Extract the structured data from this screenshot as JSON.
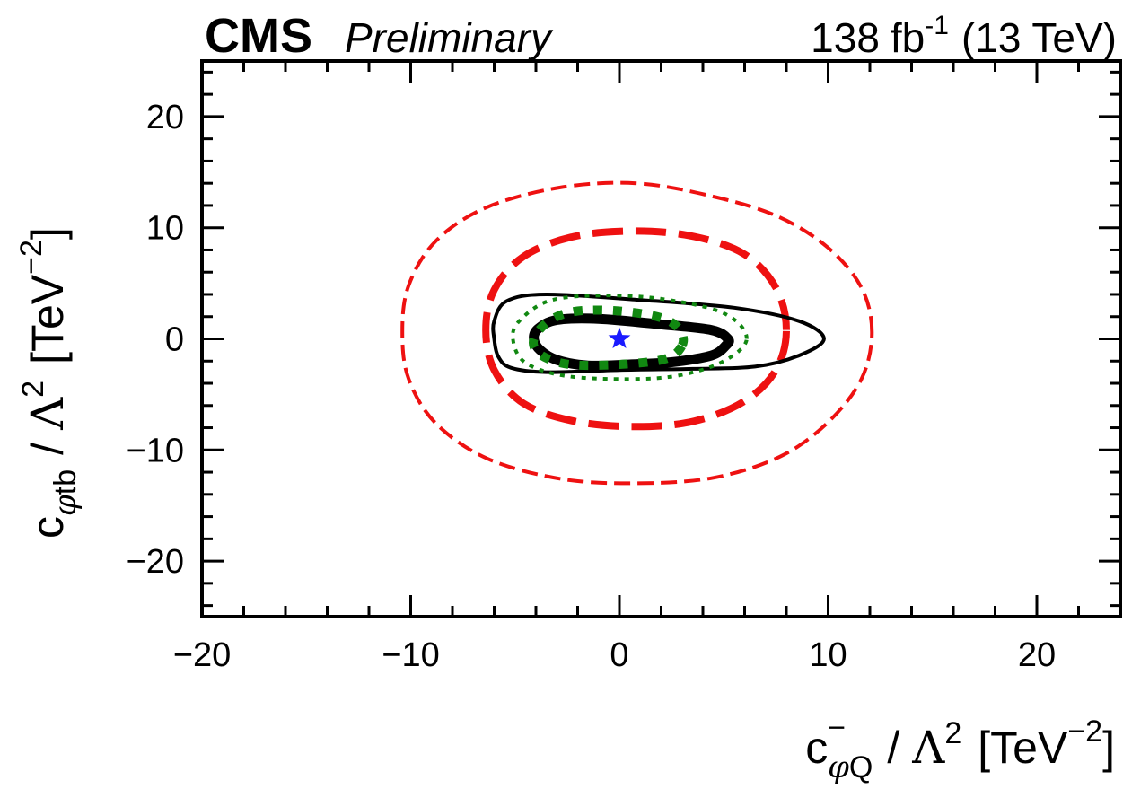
{
  "header": {
    "experiment": "CMS",
    "status": "Preliminary",
    "lumi_value": "138",
    "lumi_unit": "fb",
    "lumi_exponent": "-1",
    "energy": "(13 TeV)"
  },
  "axes": {
    "x": {
      "coef_symbol": "c",
      "coef_superscript": "−",
      "coef_subscript_phi": "φ",
      "coef_subscript_rest": "Q",
      "divider": "/",
      "lambda": "Λ",
      "lambda_power": "2",
      "unit_open": "[TeV",
      "unit_exponent": "−2",
      "unit_close": "]"
    },
    "y": {
      "coef_symbol": "c",
      "coef_subscript_phi": "φ",
      "coef_subscript_rest": "tb",
      "divider": "/",
      "lambda": "Λ",
      "lambda_power": "2",
      "unit_open": "[TeV",
      "unit_exponent": "−2",
      "unit_close": "]"
    }
  },
  "chart_data": {
    "type": "contour",
    "xlim": [
      -20,
      24
    ],
    "ylim": [
      -25,
      25
    ],
    "x_major_ticks": [
      -20,
      -10,
      0,
      10,
      20
    ],
    "x_tick_labels": [
      "−20",
      "−10",
      "0",
      "10",
      "20"
    ],
    "y_major_ticks": [
      -20,
      -10,
      0,
      10,
      20
    ],
    "y_tick_labels": [
      "−20",
      "−10",
      "0",
      "10",
      "20"
    ],
    "minor_tick_step": 2,
    "best_fit": {
      "x": 0,
      "y": 0,
      "marker": "star",
      "color": "#1a1aff"
    },
    "contours": [
      {
        "id": "red-dashed-outer",
        "color": "#ee1111",
        "style": "dashed",
        "width": 4,
        "points": [
          [
            12.1,
            0.6
          ],
          [
            11.6,
            4.6
          ],
          [
            10,
            8.2
          ],
          [
            7.6,
            11
          ],
          [
            4.5,
            12.8
          ],
          [
            0.8,
            14
          ],
          [
            -2.9,
            13.6
          ],
          [
            -6.4,
            11.8
          ],
          [
            -8.8,
            8.8
          ],
          [
            -10.1,
            4.8
          ],
          [
            -10.4,
            0.6
          ],
          [
            -10.1,
            -3.6
          ],
          [
            -8.8,
            -7.6
          ],
          [
            -6.3,
            -10.8
          ],
          [
            -2.8,
            -12.6
          ],
          [
            0.8,
            -13
          ],
          [
            4.5,
            -12.5
          ],
          [
            7.7,
            -10.6
          ],
          [
            10,
            -7.5
          ],
          [
            11.6,
            -3.6
          ]
        ]
      },
      {
        "id": "red-dashed-inner",
        "color": "#ee1111",
        "style": "dashed",
        "width": 8,
        "points": [
          [
            8,
            0.8
          ],
          [
            7.5,
            4.6
          ],
          [
            6,
            7.6
          ],
          [
            3.6,
            9.2
          ],
          [
            0.8,
            9.7
          ],
          [
            -2.2,
            9.2
          ],
          [
            -4.6,
            7.4
          ],
          [
            -6,
            4.4
          ],
          [
            -6.4,
            0.8
          ],
          [
            -6,
            -2.8
          ],
          [
            -4.6,
            -5.8
          ],
          [
            -2.2,
            -7.4
          ],
          [
            0.8,
            -7.9
          ],
          [
            3.6,
            -7.4
          ],
          [
            6,
            -5.6
          ],
          [
            7.5,
            -2.8
          ]
        ]
      },
      {
        "id": "black-outer",
        "color": "#000000",
        "style": "solid",
        "width": 4,
        "points": [
          [
            9.8,
            0
          ],
          [
            8.6,
            1.6
          ],
          [
            5.5,
            2.8
          ],
          [
            1,
            3.5
          ],
          [
            -3.5,
            4
          ],
          [
            -5.4,
            3.4
          ],
          [
            -6,
            1.6
          ],
          [
            -6,
            0
          ],
          [
            -5.8,
            -1.6
          ],
          [
            -5.2,
            -2.6
          ],
          [
            -3.5,
            -3
          ],
          [
            0,
            -2.8
          ],
          [
            3.5,
            -2.7
          ],
          [
            6.5,
            -2.5
          ],
          [
            8.6,
            -1.5
          ]
        ]
      },
      {
        "id": "black-inner",
        "color": "#000000",
        "style": "solid",
        "width": 11,
        "points": [
          [
            5.2,
            0
          ],
          [
            4.4,
            0.8
          ],
          [
            2,
            1.3
          ],
          [
            -1,
            1.8
          ],
          [
            -3,
            1.7
          ],
          [
            -3.9,
            0.9
          ],
          [
            -4.1,
            0
          ],
          [
            -3.8,
            -1
          ],
          [
            -3,
            -1.9
          ],
          [
            -1.5,
            -2.4
          ],
          [
            0.5,
            -2.3
          ],
          [
            2.5,
            -2.1
          ],
          [
            4.4,
            -1.5
          ],
          [
            5.1,
            -0.6
          ]
        ]
      },
      {
        "id": "green-dotted-outer",
        "color": "#118811",
        "style": "dotted",
        "width": 4,
        "points": [
          [
            6.1,
            0
          ],
          [
            5,
            2.3
          ],
          [
            2,
            3.6
          ],
          [
            -1,
            3.9
          ],
          [
            -3.4,
            3.4
          ],
          [
            -4.8,
            1.6
          ],
          [
            -5.1,
            0
          ],
          [
            -4.6,
            -2
          ],
          [
            -3,
            -3.2
          ],
          [
            -0.5,
            -3.6
          ],
          [
            2.5,
            -3.4
          ],
          [
            4.9,
            -2.1
          ]
        ]
      },
      {
        "id": "green-dotted-inner",
        "color": "#118811",
        "style": "dotted",
        "width": 10,
        "points": [
          [
            3,
            -0.6
          ],
          [
            2.9,
            0.8
          ],
          [
            2,
            1.9
          ],
          [
            0,
            2.5
          ],
          [
            -2,
            2.5
          ],
          [
            -3.3,
            1.7
          ],
          [
            -4.1,
            0
          ],
          [
            -3.8,
            -1.4
          ],
          [
            -2.4,
            -2.3
          ],
          [
            0,
            -2.3
          ],
          [
            2.2,
            -1.8
          ]
        ]
      }
    ]
  }
}
